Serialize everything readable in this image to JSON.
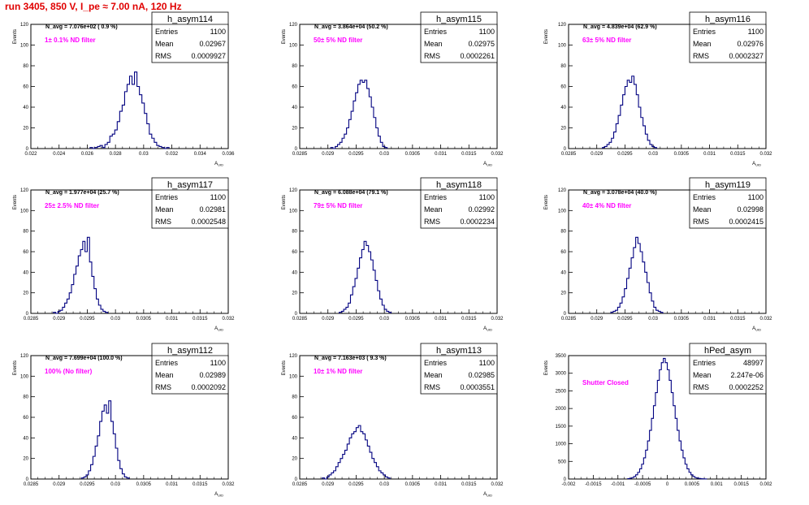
{
  "page_title": "run 3405,   850 V, I_pe ≈ 7.00 nA, 120 Hz",
  "colors": {
    "title": "#e00000",
    "histogram": "#000080",
    "filter_label": "#ff00ff",
    "axis": "#000000"
  },
  "chart_data": [
    {
      "type": "histogram",
      "name": "h_asym114",
      "stats": {
        "entries": "1100",
        "mean": "0.02967",
        "rms": "0.0009927"
      },
      "n_avg": "N_avg = 7.076e+02 ( 0.9 %)",
      "filter_label": "1± 0.1% ND filter",
      "xlabel": "A_UID",
      "ylabel": "Events",
      "xlim": [
        0.022,
        0.038
      ],
      "ylim": [
        0,
        120
      ],
      "xticks": [
        "0.022",
        "0.024",
        "0.026",
        "0.028",
        "0.03",
        "0.032",
        "0.034",
        "0.036"
      ],
      "yticks": [
        "0",
        "20",
        "40",
        "60",
        "80",
        "100",
        "120"
      ],
      "x_start": 0.0268,
      "bin_width": 0.0002,
      "values": [
        1,
        0,
        1,
        2,
        3,
        1,
        4,
        6,
        12,
        14,
        18,
        26,
        36,
        42,
        55,
        62,
        70,
        62,
        74,
        60,
        52,
        44,
        34,
        24,
        14,
        10,
        6,
        3,
        2,
        1,
        0,
        1
      ]
    },
    {
      "type": "histogram",
      "name": "h_asym115",
      "stats": {
        "entries": "1100",
        "mean": "0.02975",
        "rms": "0.0002261"
      },
      "n_avg": "N_avg = 3.864e+04 (50.2 %)",
      "filter_label": "50± 5% ND filter",
      "xlabel": "A_UID",
      "ylabel": "Events",
      "xlim": [
        0.0285,
        0.032
      ],
      "ylim": [
        0,
        120
      ],
      "xticks": [
        "0.0285",
        "0.029",
        "0.0295",
        "0.03",
        "0.0305",
        "0.031",
        "0.0315",
        "0.032"
      ],
      "yticks": [
        "0",
        "20",
        "40",
        "60",
        "80",
        "100",
        "120"
      ],
      "x_start": 0.02905,
      "bin_width": 4e-05,
      "values": [
        1,
        0,
        2,
        4,
        6,
        10,
        14,
        20,
        28,
        36,
        46,
        54,
        62,
        66,
        64,
        66,
        58,
        50,
        40,
        30,
        20,
        12,
        6,
        2,
        1
      ]
    },
    {
      "type": "histogram",
      "name": "h_asym116",
      "stats": {
        "entries": "1100",
        "mean": "0.02976",
        "rms": "0.0002327"
      },
      "n_avg": "N_avg = 4.839e+04 (62.9 %)",
      "filter_label": "63± 5% ND filter",
      "xlabel": "A_UID",
      "ylabel": "Events",
      "xlim": [
        0.0285,
        0.032
      ],
      "ylim": [
        0,
        120
      ],
      "xticks": [
        "0.0285",
        "0.029",
        "0.0295",
        "0.03",
        "0.0305",
        "0.031",
        "0.0315",
        "0.032"
      ],
      "yticks": [
        "0",
        "20",
        "40",
        "60",
        "80",
        "100",
        "120"
      ],
      "x_start": 0.0291,
      "bin_width": 4e-05,
      "values": [
        1,
        2,
        4,
        6,
        10,
        16,
        24,
        32,
        42,
        52,
        60,
        66,
        64,
        70,
        62,
        52,
        40,
        30,
        22,
        14,
        8,
        4,
        2,
        1
      ]
    },
    {
      "type": "histogram",
      "name": "h_asym117",
      "stats": {
        "entries": "1100",
        "mean": "0.02981",
        "rms": "0.0002548"
      },
      "n_avg": "N_avg = 1.977e+04 (25.7 %)",
      "filter_label": "25± 2.5% ND filter",
      "xlabel": "A_UID",
      "ylabel": "Events",
      "xlim": [
        0.0285,
        0.032
      ],
      "ylim": [
        0,
        120
      ],
      "xticks": [
        "0.0285",
        "0.029",
        "0.0295",
        "0.03",
        "0.0305",
        "0.031",
        "0.0315",
        "0.032"
      ],
      "yticks": [
        "0",
        "20",
        "40",
        "60",
        "80",
        "100",
        "120"
      ],
      "x_start": 0.0289,
      "bin_width": 4e-05,
      "values": [
        1,
        0,
        2,
        3,
        6,
        10,
        14,
        20,
        28,
        38,
        46,
        56,
        62,
        70,
        60,
        74,
        50,
        36,
        24,
        14,
        8,
        4,
        2,
        1
      ]
    },
    {
      "type": "histogram",
      "name": "h_asym118",
      "stats": {
        "entries": "1100",
        "mean": "0.02992",
        "rms": "0.0002234"
      },
      "n_avg": "N_avg = 6.088e+04 (79.1 %)",
      "filter_label": "79± 5% ND filter",
      "xlabel": "A_UID",
      "ylabel": "Events",
      "xlim": [
        0.0285,
        0.032
      ],
      "ylim": [
        0,
        120
      ],
      "xticks": [
        "0.0285",
        "0.029",
        "0.0295",
        "0.03",
        "0.0305",
        "0.031",
        "0.0315",
        "0.032"
      ],
      "yticks": [
        "0",
        "20",
        "40",
        "60",
        "80",
        "100",
        "120"
      ],
      "x_start": 0.0292,
      "bin_width": 4e-05,
      "values": [
        1,
        2,
        4,
        6,
        10,
        18,
        26,
        34,
        44,
        54,
        62,
        70,
        66,
        60,
        52,
        42,
        32,
        22,
        14,
        8,
        4,
        2,
        1
      ]
    },
    {
      "type": "histogram",
      "name": "h_asym119",
      "stats": {
        "entries": "1100",
        "mean": "0.02998",
        "rms": "0.0002415"
      },
      "n_avg": "N_avg = 3.078e+04 (40.0 %)",
      "filter_label": "40± 4% ND filter",
      "xlabel": "A_UID",
      "ylabel": "Events",
      "xlim": [
        0.0285,
        0.032
      ],
      "ylim": [
        0,
        120
      ],
      "xticks": [
        "0.0285",
        "0.029",
        "0.0295",
        "0.03",
        "0.0305",
        "0.031",
        "0.0315",
        "0.032"
      ],
      "yticks": [
        "0",
        "20",
        "40",
        "60",
        "80",
        "100",
        "120"
      ],
      "x_start": 0.02925,
      "bin_width": 4e-05,
      "values": [
        1,
        2,
        3,
        6,
        10,
        16,
        24,
        34,
        44,
        54,
        64,
        74,
        68,
        60,
        50,
        40,
        30,
        20,
        12,
        6,
        3,
        2,
        1
      ]
    },
    {
      "type": "histogram",
      "name": "h_asym112",
      "stats": {
        "entries": "1100",
        "mean": "0.02989",
        "rms": "0.0002092"
      },
      "n_avg": "N_avg = 7.699e+04 (100.0 %)",
      "filter_label": "100% (No filter)",
      "xlabel": "A_UID",
      "ylabel": "Events",
      "xlim": [
        0.0285,
        0.032
      ],
      "ylim": [
        0,
        120
      ],
      "xticks": [
        "0.0285",
        "0.029",
        "0.0295",
        "0.03",
        "0.0305",
        "0.031",
        "0.0315",
        "0.032"
      ],
      "yticks": [
        "0",
        "20",
        "40",
        "60",
        "80",
        "100",
        "120"
      ],
      "x_start": 0.0294,
      "bin_width": 4e-05,
      "values": [
        1,
        2,
        4,
        8,
        14,
        22,
        32,
        42,
        56,
        66,
        72,
        64,
        76,
        56,
        44,
        30,
        18,
        10,
        5,
        2,
        1
      ]
    },
    {
      "type": "histogram",
      "name": "h_asym113",
      "stats": {
        "entries": "1100",
        "mean": "0.02985",
        "rms": "0.0003551"
      },
      "n_avg": "N_avg = 7.163e+03 ( 9.3 %)",
      "filter_label": "10± 1% ND filter",
      "xlabel": "A_UID",
      "ylabel": "Events",
      "xlim": [
        0.0285,
        0.032
      ],
      "ylim": [
        0,
        120
      ],
      "xticks": [
        "0.0285",
        "0.029",
        "0.0295",
        "0.03",
        "0.0305",
        "0.031",
        "0.0315",
        "0.032"
      ],
      "yticks": [
        "0",
        "20",
        "40",
        "60",
        "80",
        "100",
        "120"
      ],
      "x_start": 0.0289,
      "bin_width": 4e-05,
      "values": [
        1,
        0,
        2,
        4,
        6,
        8,
        12,
        16,
        20,
        24,
        28,
        34,
        40,
        44,
        46,
        50,
        52,
        46,
        44,
        38,
        32,
        26,
        20,
        16,
        12,
        8,
        6,
        4,
        2,
        1
      ]
    },
    {
      "type": "histogram",
      "name": "hPed_asym",
      "stats": {
        "entries": "48997",
        "mean": "2.247e-06",
        "rms": "0.0002252"
      },
      "n_avg": "",
      "filter_label": "Shutter Closed",
      "xlabel": "",
      "ylabel": "Events",
      "xlim": [
        -0.002,
        0.002
      ],
      "ylim": [
        0,
        3500
      ],
      "xticks": [
        "-0.002",
        "-0.0015",
        "-0.001",
        "-0.0005",
        "0",
        "0.0005",
        "0.001",
        "0.0015",
        "0.002"
      ],
      "yticks": [
        "0",
        "500",
        "1000",
        "1500",
        "2000",
        "2500",
        "3000",
        "3500"
      ],
      "x_start": -0.0008,
      "bin_width": 4e-05,
      "values": [
        10,
        20,
        40,
        70,
        120,
        190,
        290,
        420,
        600,
        820,
        1080,
        1380,
        1720,
        2080,
        2450,
        2800,
        3100,
        3300,
        3420,
        3300,
        3100,
        2800,
        2450,
        2080,
        1720,
        1380,
        1080,
        820,
        600,
        420,
        290,
        190,
        120,
        70,
        40,
        25,
        15,
        8,
        5,
        2
      ]
    }
  ]
}
